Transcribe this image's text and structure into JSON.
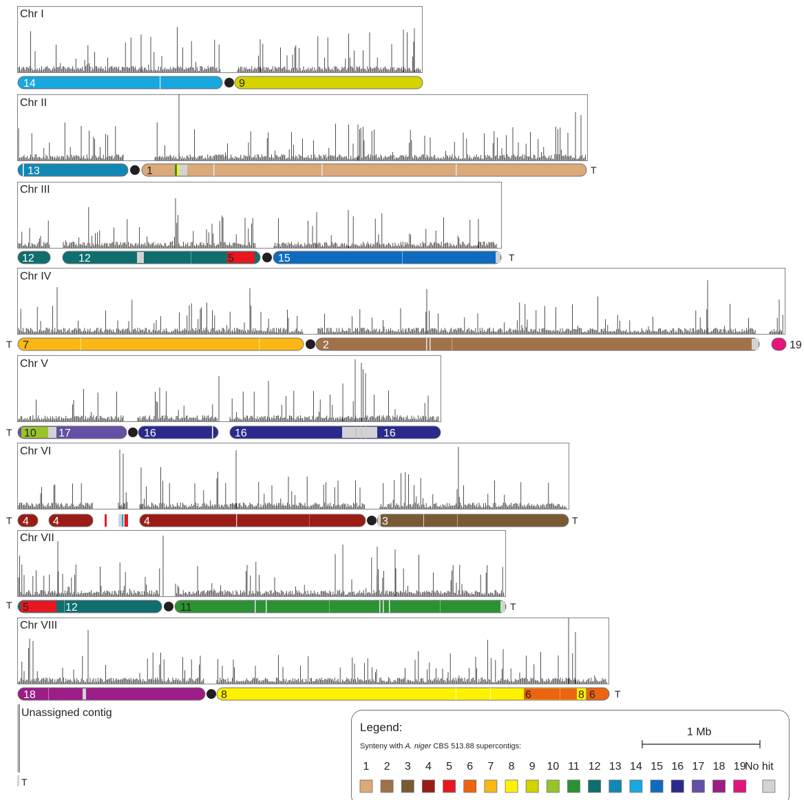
{
  "figure": {
    "chromosomes": [
      {
        "name": "Chr I",
        "segments": [
          {
            "label": "14",
            "color_key": "14"
          },
          {
            "label": "9",
            "color_key": "9"
          }
        ],
        "telomeres": []
      },
      {
        "name": "Chr II",
        "segments": [
          {
            "label": "13",
            "color_key": "13"
          },
          {
            "label": "1",
            "color_key": "1"
          }
        ],
        "telomeres": [
          "T"
        ]
      },
      {
        "name": "Chr III",
        "segments": [
          {
            "label": "12",
            "color_key": "12"
          },
          {
            "label": "12",
            "color_key": "12"
          },
          {
            "label": "5",
            "color_key": "5"
          },
          {
            "label": "15",
            "color_key": "15"
          }
        ],
        "telomeres": [
          "T"
        ]
      },
      {
        "name": "Chr IV",
        "segments": [
          {
            "label": "7",
            "color_key": "7"
          },
          {
            "label": "2",
            "color_key": "2"
          },
          {
            "label": "19",
            "color_key": "19"
          }
        ],
        "telomeres": [
          "T"
        ]
      },
      {
        "name": "Chr V",
        "segments": [
          {
            "label": "10",
            "color_key": "10"
          },
          {
            "label": "17",
            "color_key": "17"
          },
          {
            "label": "16",
            "color_key": "16"
          },
          {
            "label": "16",
            "color_key": "16"
          },
          {
            "label": "16",
            "color_key": "16"
          }
        ],
        "telomeres": [
          "T"
        ]
      },
      {
        "name": "Chr VI",
        "segments": [
          {
            "label": "4",
            "color_key": "4"
          },
          {
            "label": "4",
            "color_key": "4"
          },
          {
            "label": "4",
            "color_key": "4"
          },
          {
            "label": "3",
            "color_key": "3"
          }
        ],
        "telomeres": [
          "T",
          "T"
        ]
      },
      {
        "name": "Chr VII",
        "segments": [
          {
            "label": "5",
            "color_key": "5"
          },
          {
            "label": "12",
            "color_key": "12"
          },
          {
            "label": "11",
            "color_key": "11"
          }
        ],
        "telomeres": [
          "T",
          "T"
        ]
      },
      {
        "name": "Chr VIII",
        "segments": [
          {
            "label": "18",
            "color_key": "18"
          },
          {
            "label": "8",
            "color_key": "8"
          },
          {
            "label": "6",
            "color_key": "6"
          },
          {
            "label": "8",
            "color_key": "8"
          },
          {
            "label": "6",
            "color_key": "6"
          }
        ],
        "telomeres": [
          "T"
        ]
      }
    ],
    "unassigned": {
      "label": "Unassigned contig",
      "telomere": "T"
    },
    "legend": {
      "title": "Legend:",
      "subtitle_prefix": "Synteny with ",
      "subtitle_species": "A. niger",
      "subtitle_suffix": " CBS 513.88 supercontigs:",
      "scale_label": "1 Mb",
      "entries": [
        {
          "label": "1",
          "color": "#dca97a"
        },
        {
          "label": "2",
          "color": "#a0724a"
        },
        {
          "label": "3",
          "color": "#7a5a35"
        },
        {
          "label": "4",
          "color": "#9b1c14"
        },
        {
          "label": "5",
          "color": "#e8171f"
        },
        {
          "label": "6",
          "color": "#ed6410"
        },
        {
          "label": "7",
          "color": "#fab715"
        },
        {
          "label": "8",
          "color": "#fff200"
        },
        {
          "label": "9",
          "color": "#d3d300"
        },
        {
          "label": "10",
          "color": "#97c42a"
        },
        {
          "label": "11",
          "color": "#2b9233"
        },
        {
          "label": "12",
          "color": "#0f6e6e"
        },
        {
          "label": "13",
          "color": "#1188b3"
        },
        {
          "label": "14",
          "color": "#19a7e0"
        },
        {
          "label": "15",
          "color": "#0f6bc0"
        },
        {
          "label": "16",
          "color": "#2b2a8c"
        },
        {
          "label": "17",
          "color": "#6450a5"
        },
        {
          "label": "18",
          "color": "#9c1d87"
        },
        {
          "label": "19",
          "color": "#e2157d"
        },
        {
          "label": "No hit",
          "color": "#d1d3d4"
        }
      ]
    }
  }
}
